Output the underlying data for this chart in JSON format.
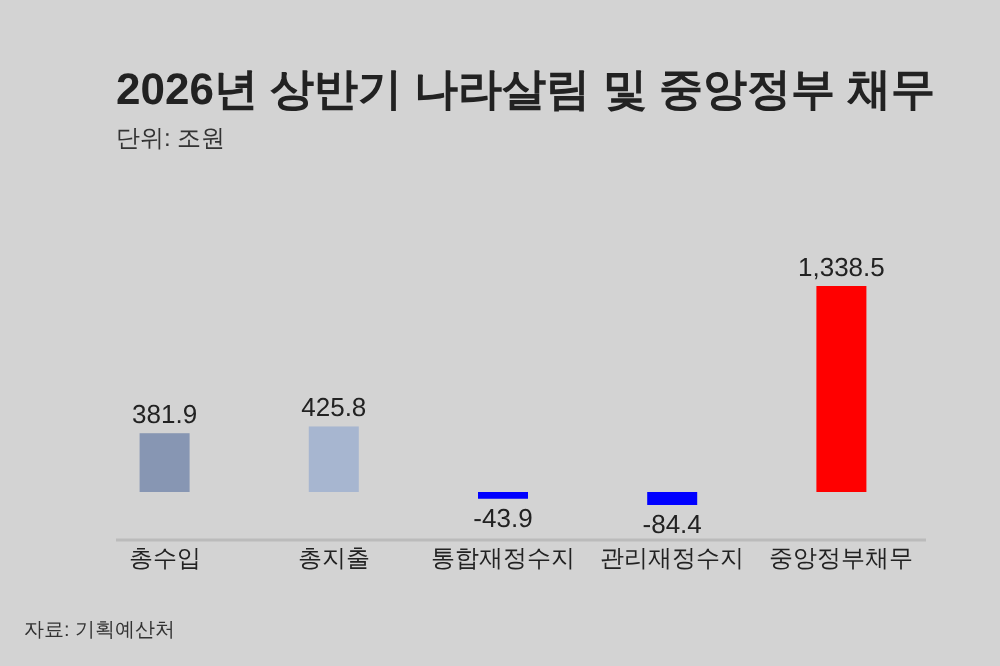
{
  "chart_data": {
    "type": "bar",
    "title": "2026년 상반기 나라살림 및 중앙정부 채무",
    "subtitle": "단위: 조원",
    "categories": [
      "총수입",
      "총지출",
      "통합재정수지",
      "관리재정수지",
      "중앙정부채무"
    ],
    "values": [
      381.9,
      425.8,
      -43.9,
      -84.4,
      1338.5
    ],
    "colors": [
      "#8796b3",
      "#a7b6d0",
      "#0000ff",
      "#0000ff",
      "#ff0000"
    ],
    "value_labels": [
      "381.9",
      "425.8",
      "-43.9",
      "-84.4",
      "1,338.5"
    ],
    "annotations": [
      "자료: 기획예산처"
    ]
  }
}
